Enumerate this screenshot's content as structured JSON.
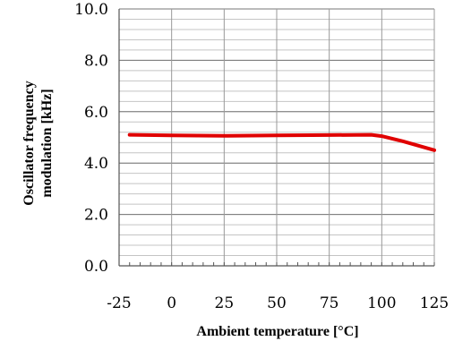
{
  "chart_data": {
    "type": "line",
    "xlabel": "Ambient temperature [°C]",
    "ylabel_line1": "Oscillator frequency",
    "ylabel_line2": "modulation [kHz]",
    "xlim": [
      -25,
      125
    ],
    "ylim": [
      0.0,
      10.0
    ],
    "x_ticks": [
      "-25",
      "0",
      "25",
      "50",
      "75",
      "100",
      "125"
    ],
    "y_ticks": [
      "0.0",
      "2.0",
      "4.0",
      "6.0",
      "8.0",
      "10.0"
    ],
    "grid": true,
    "series": [
      {
        "color": "#e00000",
        "x": [
          -20,
          0,
          25,
          50,
          75,
          95,
          100,
          110,
          125
        ],
        "y": [
          5.1,
          5.08,
          5.06,
          5.08,
          5.09,
          5.1,
          5.05,
          4.85,
          4.5
        ]
      }
    ]
  }
}
